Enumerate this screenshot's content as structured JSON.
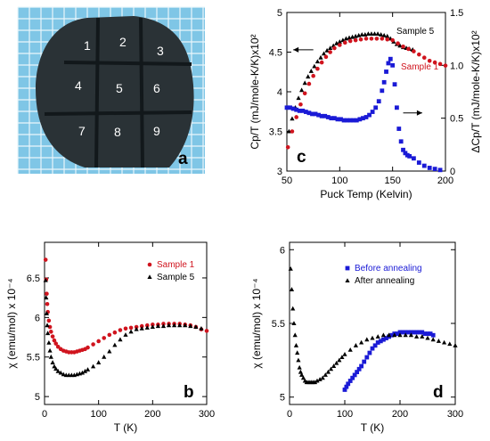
{
  "photo": {
    "letter": "a",
    "cell_labels": [
      "1",
      "2",
      "3",
      "4",
      "5",
      "6",
      "7",
      "8",
      "9"
    ],
    "colors": {
      "grid_bg": "#7fc6e6",
      "grid_line": "#e9f6fb",
      "sample": "#2a3236",
      "cut": "#12181b"
    }
  },
  "chart_data": [
    {
      "id": "c",
      "type": "scatter",
      "letter": "c",
      "xlabel": "Puck Temp (Kelvin)",
      "ylabel": "Cp/T (mJ/mole-K/K)x10²",
      "y2label": "ΔCp/T (mJ/mole-K/K)x10²",
      "xlim": [
        50,
        200
      ],
      "ylim": [
        3,
        5
      ],
      "y2lim": [
        0,
        1.5
      ],
      "xticks": [
        50,
        100,
        150,
        200
      ],
      "yticks": [
        3,
        3.5,
        4,
        4.5,
        5
      ],
      "y2ticks": [
        0,
        0.5,
        1.0,
        1.5
      ],
      "xtick_labels": [
        "50",
        "100",
        "150",
        "200"
      ],
      "ytick_labels": [
        "3",
        "3.5",
        "4",
        "4.5",
        "5"
      ],
      "y2tick_labels": [
        "0",
        "0.5",
        "1.0",
        "1.5"
      ],
      "legend": [
        {
          "name": "Sample 5",
          "color": "#000000"
        },
        {
          "name": "Sample 1",
          "color": "#d0141e"
        }
      ],
      "series": [
        {
          "name": "Sample 5",
          "color": "#000000",
          "marker": "triangle",
          "axis": "left",
          "x": [
            52,
            55,
            58,
            61,
            64,
            67,
            70,
            73,
            76,
            79,
            82,
            85,
            88,
            91,
            94,
            97,
            100,
            103,
            106,
            109,
            112,
            115,
            118,
            121,
            124,
            127,
            130,
            133,
            136,
            139,
            142,
            145,
            148,
            151,
            154,
            157,
            160,
            163,
            166,
            169
          ],
          "y": [
            3.5,
            3.66,
            3.8,
            3.92,
            4.02,
            4.11,
            4.19,
            4.26,
            4.32,
            4.38,
            4.43,
            4.48,
            4.52,
            4.55,
            4.58,
            4.61,
            4.63,
            4.65,
            4.67,
            4.68,
            4.69,
            4.7,
            4.71,
            4.72,
            4.72,
            4.73,
            4.73,
            4.73,
            4.73,
            4.72,
            4.71,
            4.7,
            4.67,
            4.63,
            4.6,
            4.58,
            4.56,
            4.55,
            4.54,
            4.53
          ]
        },
        {
          "name": "Sample 1",
          "color": "#d0141e",
          "marker": "circle",
          "axis": "left",
          "x": [
            51,
            55,
            59,
            63,
            67,
            71,
            75,
            79,
            83,
            87,
            91,
            95,
            100,
            105,
            110,
            115,
            120,
            125,
            130,
            135,
            140,
            145,
            150,
            155,
            160,
            165,
            170,
            175,
            180,
            185,
            190,
            195,
            200
          ],
          "y": [
            3.3,
            3.5,
            3.68,
            3.84,
            3.98,
            4.1,
            4.2,
            4.29,
            4.37,
            4.44,
            4.5,
            4.55,
            4.59,
            4.62,
            4.64,
            4.65,
            4.66,
            4.67,
            4.67,
            4.67,
            4.67,
            4.66,
            4.65,
            4.61,
            4.57,
            4.54,
            4.51,
            4.47,
            4.43,
            4.39,
            4.37,
            4.35,
            4.33
          ]
        },
        {
          "name": "ΔCp/T",
          "color": "#1a1ad6",
          "marker": "square",
          "axis": "right",
          "x": [
            50,
            53,
            56,
            59,
            62,
            65,
            68,
            71,
            74,
            77,
            80,
            83,
            86,
            89,
            92,
            95,
            98,
            101,
            104,
            107,
            110,
            113,
            116,
            119,
            122,
            125,
            128,
            131,
            134,
            137,
            140,
            142,
            144,
            146,
            148,
            150,
            152,
            154,
            156,
            158,
            160,
            162,
            164,
            166,
            170,
            175,
            180,
            185,
            190,
            195
          ],
          "y": [
            0.6,
            0.6,
            0.59,
            0.58,
            0.57,
            0.57,
            0.56,
            0.55,
            0.54,
            0.54,
            0.53,
            0.52,
            0.52,
            0.51,
            0.5,
            0.5,
            0.49,
            0.49,
            0.48,
            0.48,
            0.48,
            0.48,
            0.48,
            0.49,
            0.5,
            0.51,
            0.53,
            0.56,
            0.6,
            0.66,
            0.76,
            0.84,
            0.94,
            1.02,
            1.06,
            1.0,
            0.82,
            0.6,
            0.4,
            0.28,
            0.2,
            0.17,
            0.15,
            0.14,
            0.12,
            0.08,
            0.05,
            0.03,
            0.02,
            0.01
          ]
        }
      ],
      "annotations": [
        "arrow-left pointing to left axis near 4.5",
        "arrow-right pointing to right axis near 0.5"
      ]
    },
    {
      "id": "b",
      "type": "scatter",
      "letter": "b",
      "xlabel": "T (K)",
      "ylabel": "χ (emu/mol) x 10⁻⁴",
      "xlim": [
        0,
        300
      ],
      "ylim": [
        4.9,
        6.95
      ],
      "xticks": [
        0,
        100,
        200,
        300
      ],
      "yticks": [
        5,
        5.5,
        6,
        6.5
      ],
      "xtick_labels": [
        "0",
        "100",
        "200",
        "300"
      ],
      "ytick_labels": [
        "5",
        "5.5",
        "6",
        "6.5"
      ],
      "legend": [
        {
          "name": "Sample 1",
          "color": "#d0141e"
        },
        {
          "name": "Sample 5",
          "color": "#000000"
        }
      ],
      "series": [
        {
          "name": "Sample 1",
          "color": "#d0141e",
          "marker": "circle",
          "x": [
            2,
            3,
            4,
            5,
            6,
            8,
            10,
            12,
            15,
            18,
            21,
            25,
            30,
            35,
            40,
            45,
            50,
            55,
            60,
            65,
            70,
            75,
            80,
            90,
            100,
            110,
            120,
            130,
            140,
            150,
            160,
            170,
            180,
            190,
            200,
            210,
            220,
            230,
            240,
            250,
            260,
            270,
            280,
            290,
            300
          ],
          "y": [
            6.73,
            6.48,
            6.3,
            6.17,
            6.07,
            5.96,
            5.88,
            5.82,
            5.76,
            5.71,
            5.67,
            5.63,
            5.6,
            5.58,
            5.57,
            5.56,
            5.56,
            5.56,
            5.57,
            5.58,
            5.59,
            5.6,
            5.62,
            5.66,
            5.7,
            5.74,
            5.78,
            5.81,
            5.84,
            5.86,
            5.87,
            5.88,
            5.89,
            5.9,
            5.91,
            5.91,
            5.92,
            5.92,
            5.92,
            5.92,
            5.91,
            5.9,
            5.88,
            5.85,
            5.83
          ]
        },
        {
          "name": "Sample 5",
          "color": "#000000",
          "marker": "triangle",
          "x": [
            2,
            3,
            4,
            5,
            6,
            8,
            10,
            12,
            15,
            18,
            21,
            25,
            30,
            35,
            40,
            45,
            50,
            55,
            60,
            65,
            70,
            75,
            80,
            90,
            100,
            110,
            120,
            130,
            140,
            150,
            160,
            170,
            180,
            190,
            200,
            210,
            220,
            230,
            240,
            250,
            260,
            270,
            280,
            290
          ],
          "y": [
            6.47,
            6.25,
            6.05,
            5.9,
            5.8,
            5.68,
            5.58,
            5.5,
            5.43,
            5.38,
            5.35,
            5.32,
            5.3,
            5.28,
            5.27,
            5.27,
            5.27,
            5.27,
            5.28,
            5.29,
            5.3,
            5.32,
            5.34,
            5.38,
            5.43,
            5.5,
            5.57,
            5.65,
            5.72,
            5.78,
            5.82,
            5.85,
            5.86,
            5.87,
            5.88,
            5.89,
            5.89,
            5.9,
            5.9,
            5.9,
            5.9,
            5.89,
            5.88,
            5.86
          ]
        }
      ]
    },
    {
      "id": "d",
      "type": "scatter",
      "letter": "d",
      "xlabel": "T (K)",
      "ylabel": "χ (emu/mol) x 10⁻⁴",
      "xlim": [
        0,
        300
      ],
      "ylim": [
        4.95,
        6.05
      ],
      "xticks": [
        0,
        100,
        200,
        300
      ],
      "yticks": [
        5,
        5.5,
        6
      ],
      "xtick_labels": [
        "0",
        "100",
        "200",
        "300"
      ],
      "ytick_labels": [
        "5",
        "5.5",
        "6"
      ],
      "legend": [
        {
          "name": "Before annealing",
          "color": "#1a1ad6"
        },
        {
          "name": "After annealing",
          "color": "#000000"
        }
      ],
      "series": [
        {
          "name": "Before annealing",
          "color": "#1a1ad6",
          "marker": "square",
          "x": [
            100,
            103,
            106,
            110,
            114,
            118,
            122,
            126,
            130,
            135,
            140,
            145,
            150,
            155,
            160,
            165,
            170,
            175,
            180,
            185,
            190,
            195,
            200,
            205,
            210,
            215,
            220,
            225,
            230,
            235,
            240,
            245,
            250,
            255,
            260
          ],
          "y": [
            5.05,
            5.07,
            5.09,
            5.11,
            5.13,
            5.15,
            5.17,
            5.19,
            5.21,
            5.24,
            5.27,
            5.3,
            5.33,
            5.35,
            5.37,
            5.38,
            5.39,
            5.4,
            5.41,
            5.42,
            5.43,
            5.43,
            5.44,
            5.44,
            5.44,
            5.44,
            5.44,
            5.44,
            5.44,
            5.44,
            5.44,
            5.43,
            5.43,
            5.43,
            5.42
          ]
        },
        {
          "name": "After annealing",
          "color": "#000000",
          "marker": "triangle",
          "x": [
            2,
            4,
            6,
            8,
            10,
            12,
            14,
            16,
            18,
            20,
            22,
            25,
            28,
            31,
            34,
            37,
            40,
            43,
            46,
            50,
            55,
            60,
            65,
            70,
            75,
            80,
            85,
            90,
            95,
            100,
            110,
            120,
            130,
            140,
            150,
            160,
            170,
            180,
            190,
            200,
            210,
            220,
            230,
            240,
            250,
            260,
            270,
            280,
            290,
            300
          ],
          "y": [
            5.87,
            5.73,
            5.6,
            5.5,
            5.42,
            5.35,
            5.3,
            5.25,
            5.2,
            5.17,
            5.15,
            5.13,
            5.11,
            5.1,
            5.1,
            5.1,
            5.1,
            5.1,
            5.1,
            5.11,
            5.12,
            5.13,
            5.15,
            5.17,
            5.19,
            5.21,
            5.23,
            5.25,
            5.27,
            5.29,
            5.32,
            5.35,
            5.37,
            5.39,
            5.4,
            5.41,
            5.42,
            5.42,
            5.42,
            5.42,
            5.42,
            5.42,
            5.41,
            5.41,
            5.4,
            5.39,
            5.38,
            5.37,
            5.36,
            5.35
          ]
        }
      ]
    }
  ]
}
